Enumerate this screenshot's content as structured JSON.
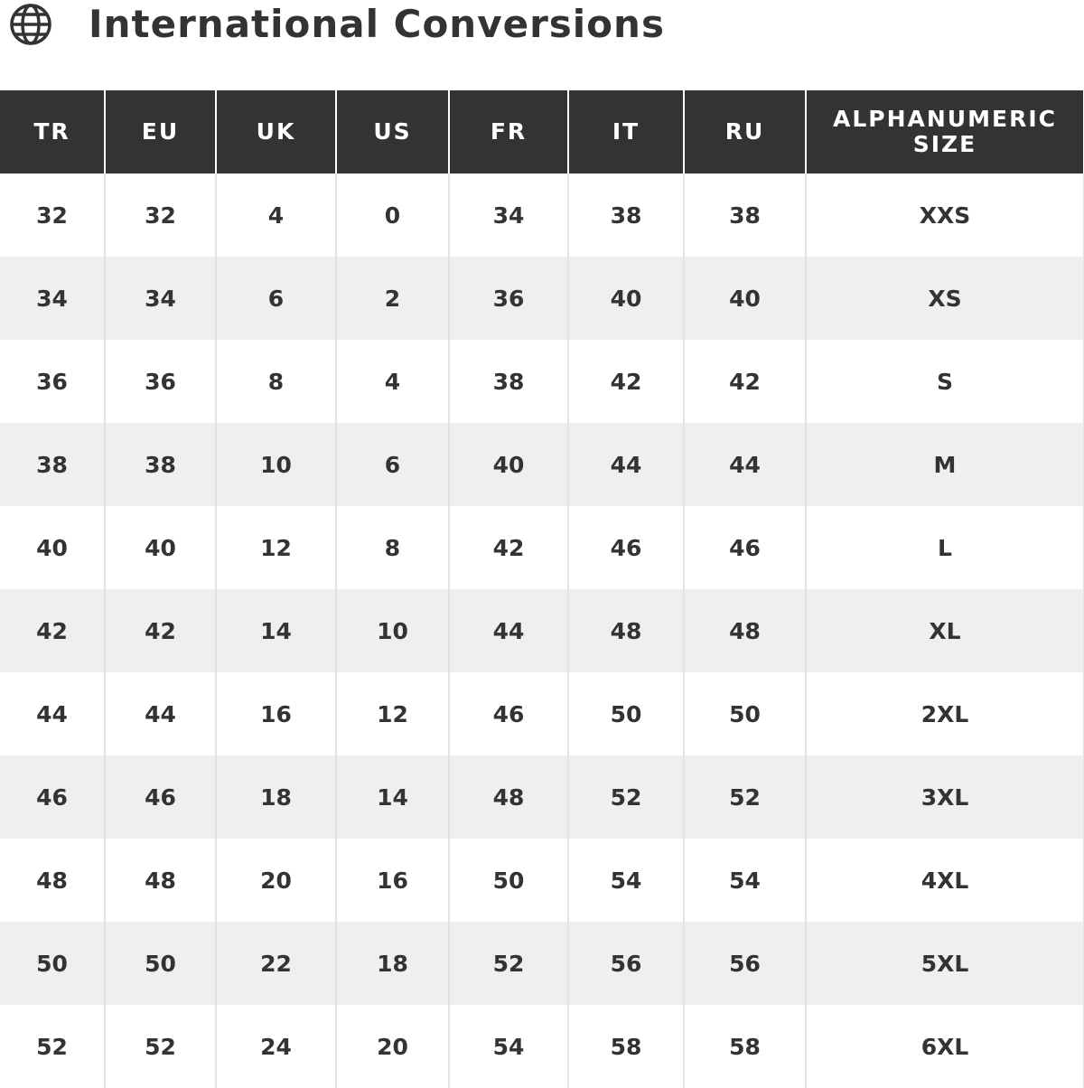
{
  "header": {
    "title": "International Conversions",
    "icon": "globe-icon"
  },
  "table": {
    "columns": [
      "TR",
      "EU",
      "UK",
      "US",
      "FR",
      "IT",
      "RU",
      "ALPHANUMERIC SIZE"
    ],
    "rows": [
      [
        "32",
        "32",
        "4",
        "0",
        "34",
        "38",
        "38",
        "XXS"
      ],
      [
        "34",
        "34",
        "6",
        "2",
        "36",
        "40",
        "40",
        "XS"
      ],
      [
        "36",
        "36",
        "8",
        "4",
        "38",
        "42",
        "42",
        "S"
      ],
      [
        "38",
        "38",
        "10",
        "6",
        "40",
        "44",
        "44",
        "M"
      ],
      [
        "40",
        "40",
        "12",
        "8",
        "42",
        "46",
        "46",
        "L"
      ],
      [
        "42",
        "42",
        "14",
        "10",
        "44",
        "48",
        "48",
        "XL"
      ],
      [
        "44",
        "44",
        "16",
        "12",
        "46",
        "50",
        "50",
        "2XL"
      ],
      [
        "46",
        "46",
        "18",
        "14",
        "48",
        "52",
        "52",
        "3XL"
      ],
      [
        "48",
        "48",
        "20",
        "16",
        "50",
        "54",
        "54",
        "4XL"
      ],
      [
        "50",
        "50",
        "22",
        "18",
        "52",
        "56",
        "56",
        "5XL"
      ],
      [
        "52",
        "52",
        "24",
        "20",
        "54",
        "58",
        "58",
        "6XL"
      ]
    ]
  },
  "colors": {
    "header_bg": "#333333",
    "alt_row": "#efefef",
    "text": "#333333"
  }
}
